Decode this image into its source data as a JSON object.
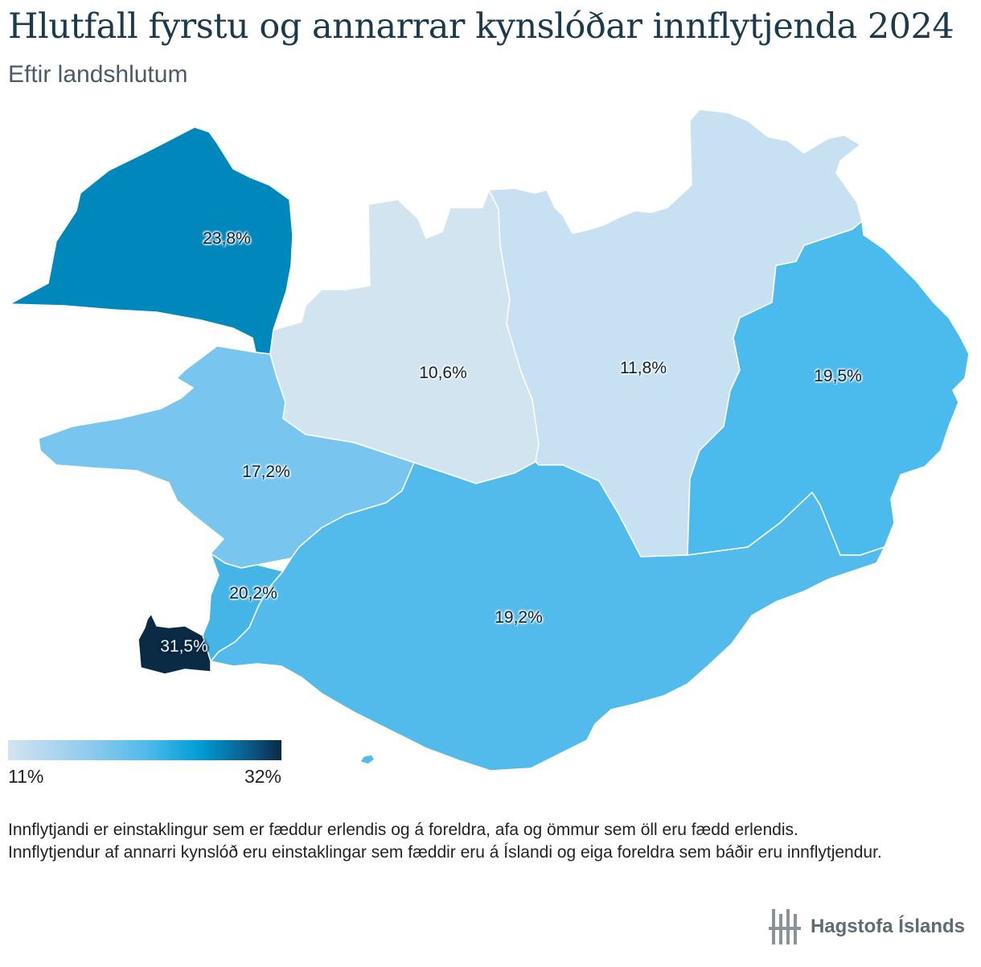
{
  "header": {
    "title": "Hlutfall fyrstu og annarrar kynslóðar innflytjenda 2024",
    "subtitle": "Eftir landshlutum"
  },
  "map": {
    "regions": [
      {
        "label": "23,8%",
        "value": 23.8,
        "color": "#0088bd"
      },
      {
        "label": "10,6%",
        "value": 10.6,
        "color": "#d3e4f1"
      },
      {
        "label": "11,8%",
        "value": 11.8,
        "color": "#c7e1f2"
      },
      {
        "label": "19,5%",
        "value": 19.5,
        "color": "#4bbaec"
      },
      {
        "label": "17,2%",
        "value": 17.2,
        "color": "#78c6ef"
      },
      {
        "label": "20,2%",
        "value": 20.2,
        "color": "#45b5e8"
      },
      {
        "label": "19,2%",
        "value": 19.2,
        "color": "#52bbeb"
      },
      {
        "label": "31,5%",
        "value": 31.5,
        "color": "#0b2a44"
      }
    ]
  },
  "legend": {
    "min_label": "11%",
    "max_label": "32%",
    "min_value": 11,
    "max_value": 32,
    "color_low": "#d3e4f1",
    "color_high": "#0b2a44"
  },
  "note": {
    "line1": "Innflytjandi er einstaklingur sem er fæddur erlendis og á foreldra, afa og ömmur sem öll eru fædd erlendis.",
    "line2": "Innflytjendur af annarri kynslóð eru einstaklingar sem fæddir eru á Íslandi og eiga foreldra sem báðir eru innflytjendur."
  },
  "brand": {
    "name": "Hagstofa Íslands",
    "logo_icon": "hagstofa-logo-icon"
  }
}
